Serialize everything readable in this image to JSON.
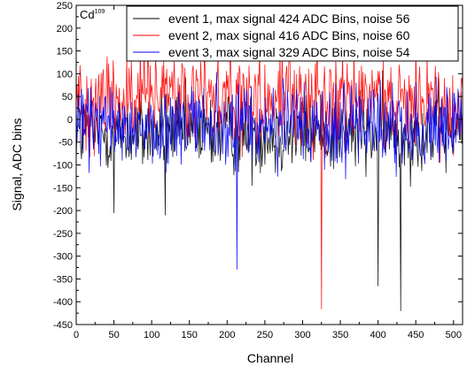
{
  "chart_data": {
    "type": "line",
    "xlabel": "Channel",
    "ylabel": "Signal, ADC bins",
    "annotation": {
      "base": "Cd",
      "superscript": "109"
    },
    "xlim": [
      0,
      512
    ],
    "ylim": [
      -450,
      250
    ],
    "x_ticks": [
      0,
      50,
      100,
      150,
      200,
      250,
      300,
      350,
      400,
      450,
      500
    ],
    "y_ticks": [
      250,
      200,
      150,
      100,
      50,
      0,
      -50,
      -100,
      -150,
      -200,
      -250,
      -300,
      -350,
      -400,
      -450
    ],
    "grid": false,
    "legend_position": "top-right",
    "series": [
      {
        "name": "event 1, max signal 424 ADC Bins, noise 56",
        "color": "#000000",
        "baseline": -30,
        "noise": 45,
        "spikes": [
          [
            50,
            -205
          ],
          [
            118,
            -210
          ],
          [
            400,
            -365
          ],
          [
            430,
            -420
          ]
        ]
      },
      {
        "name": "event 2, max signal 416 ADC Bins, noise 60",
        "color": "#ff0000",
        "baseline": 45,
        "noise": 55,
        "spikes": [
          [
            170,
            180
          ],
          [
            270,
            165
          ],
          [
            325,
            -416
          ],
          [
            450,
            160
          ]
        ]
      },
      {
        "name": "event 3, max signal 329 ADC Bins, noise 54",
        "color": "#0000ff",
        "baseline": -15,
        "noise": 48,
        "spikes": [
          [
            213,
            -329
          ],
          [
            355,
            80
          ]
        ]
      }
    ]
  }
}
